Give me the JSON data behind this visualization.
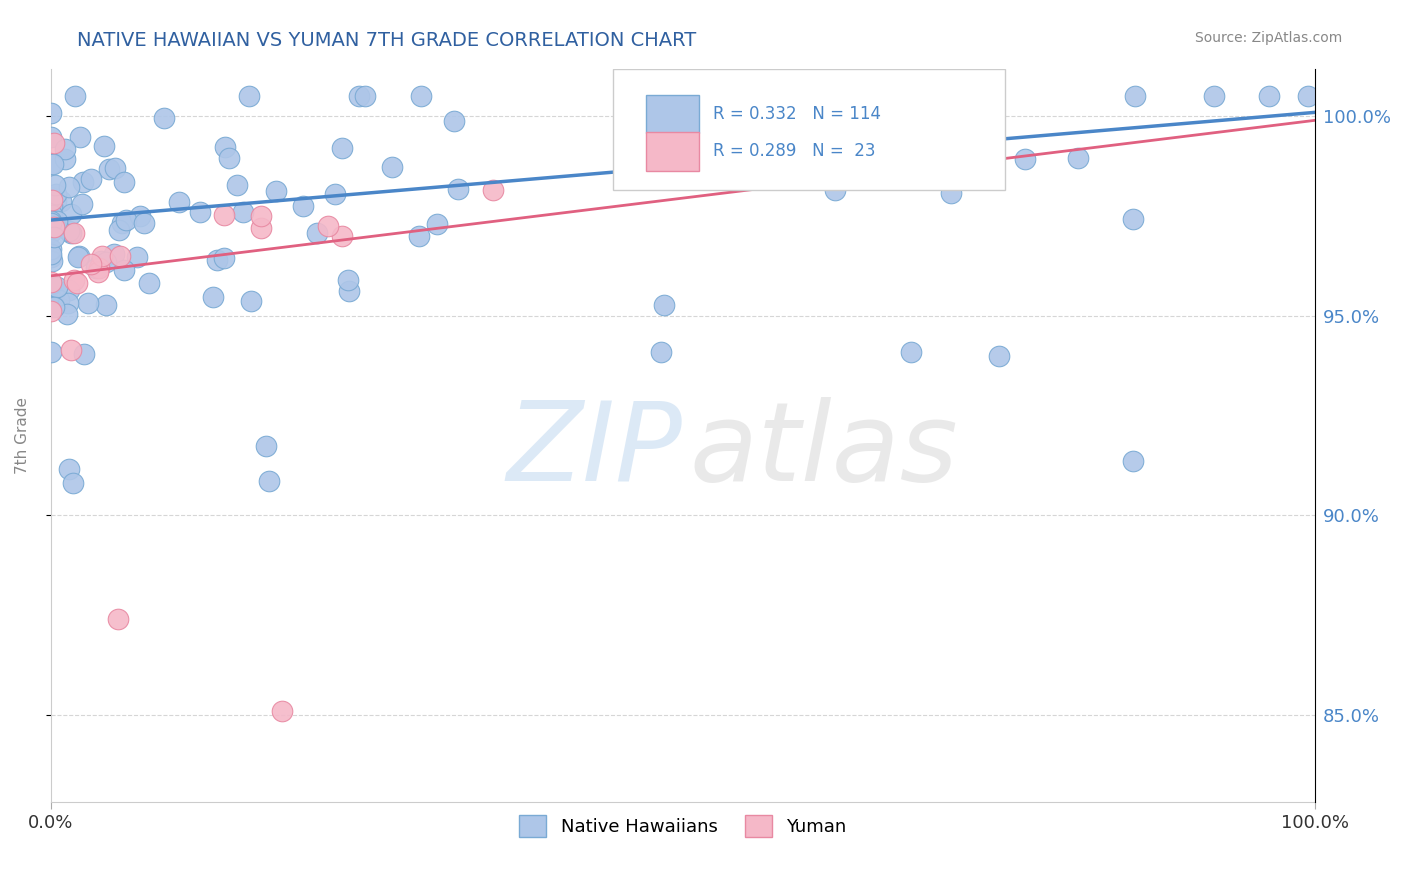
{
  "title": "NATIVE HAWAIIAN VS YUMAN 7TH GRADE CORRELATION CHART",
  "source_text": "Source: ZipAtlas.com",
  "ylabel": "7th Grade",
  "xlim": [
    0.0,
    1.0
  ],
  "ylim": [
    0.828,
    1.012
  ],
  "y_tick_values": [
    0.85,
    0.9,
    0.95,
    1.0
  ],
  "legend_r_blue": "R = 0.332",
  "legend_n_blue": "N = 114",
  "legend_r_pink": "R = 0.289",
  "legend_n_pink": "N =  23",
  "legend_label_blue": "Native Hawaiians",
  "legend_label_pink": "Yuman",
  "blue_color": "#aec6e8",
  "blue_edge": "#7aaad4",
  "pink_color": "#f5b8c8",
  "pink_edge": "#e889a2",
  "blue_line_color": "#4a86c8",
  "pink_line_color": "#e06080",
  "text_color": "#3060a0",
  "blue_trend_y_start": 0.974,
  "blue_trend_y_end": 1.001,
  "pink_trend_y_start": 0.96,
  "pink_trend_y_end": 0.999
}
